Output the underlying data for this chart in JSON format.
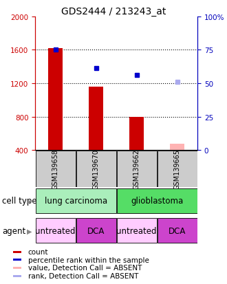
{
  "title": "GDS2444 / 213243_at",
  "samples": [
    "GSM139658",
    "GSM139670",
    "GSM139662",
    "GSM139665"
  ],
  "bar_values": [
    1620,
    1160,
    800,
    480
  ],
  "bar_colors": [
    "#cc0000",
    "#cc0000",
    "#cc0000",
    "#ffb3b3"
  ],
  "bar_bottom": 400,
  "dot_values": [
    1600,
    1380,
    1300,
    1220
  ],
  "dot_colors": [
    "#0000cc",
    "#0000cc",
    "#0000cc",
    "#aaaaee"
  ],
  "ylim_left": [
    400,
    2000
  ],
  "ylim_right": [
    0,
    100
  ],
  "left_ticks": [
    400,
    800,
    1200,
    1600,
    2000
  ],
  "right_ticks": [
    0,
    25,
    50,
    75,
    100
  ],
  "right_tick_labels": [
    "0",
    "25",
    "50",
    "75",
    "100%"
  ],
  "hline_values": [
    800,
    1200,
    1600
  ],
  "cell_type_groups": [
    {
      "label": "lung carcinoma",
      "cols": [
        0,
        1
      ],
      "color": "#aaeebb"
    },
    {
      "label": "glioblastoma",
      "cols": [
        2,
        3
      ],
      "color": "#55dd66"
    }
  ],
  "agent_groups": [
    {
      "label": "untreated",
      "col": 0,
      "color": "#ffccff"
    },
    {
      "label": "DCA",
      "col": 1,
      "color": "#cc44cc"
    },
    {
      "label": "untreated",
      "col": 2,
      "color": "#ffccff"
    },
    {
      "label": "DCA",
      "col": 3,
      "color": "#cc44cc"
    }
  ],
  "sample_box_color": "#cccccc",
  "legend_items": [
    {
      "color": "#cc0000",
      "label": "count"
    },
    {
      "color": "#0000cc",
      "label": "percentile rank within the sample"
    },
    {
      "color": "#ffb3b3",
      "label": "value, Detection Call = ABSENT"
    },
    {
      "color": "#aaaaee",
      "label": "rank, Detection Call = ABSENT"
    }
  ],
  "left_label_color": "#cc0000",
  "right_label_color": "#0000bb",
  "title_fontsize": 10,
  "tick_fontsize": 7.5,
  "sample_fontsize": 7,
  "cell_type_fontsize": 8.5,
  "agent_fontsize": 8.5,
  "legend_fontsize": 7.5,
  "row_label_fontsize": 8.5
}
